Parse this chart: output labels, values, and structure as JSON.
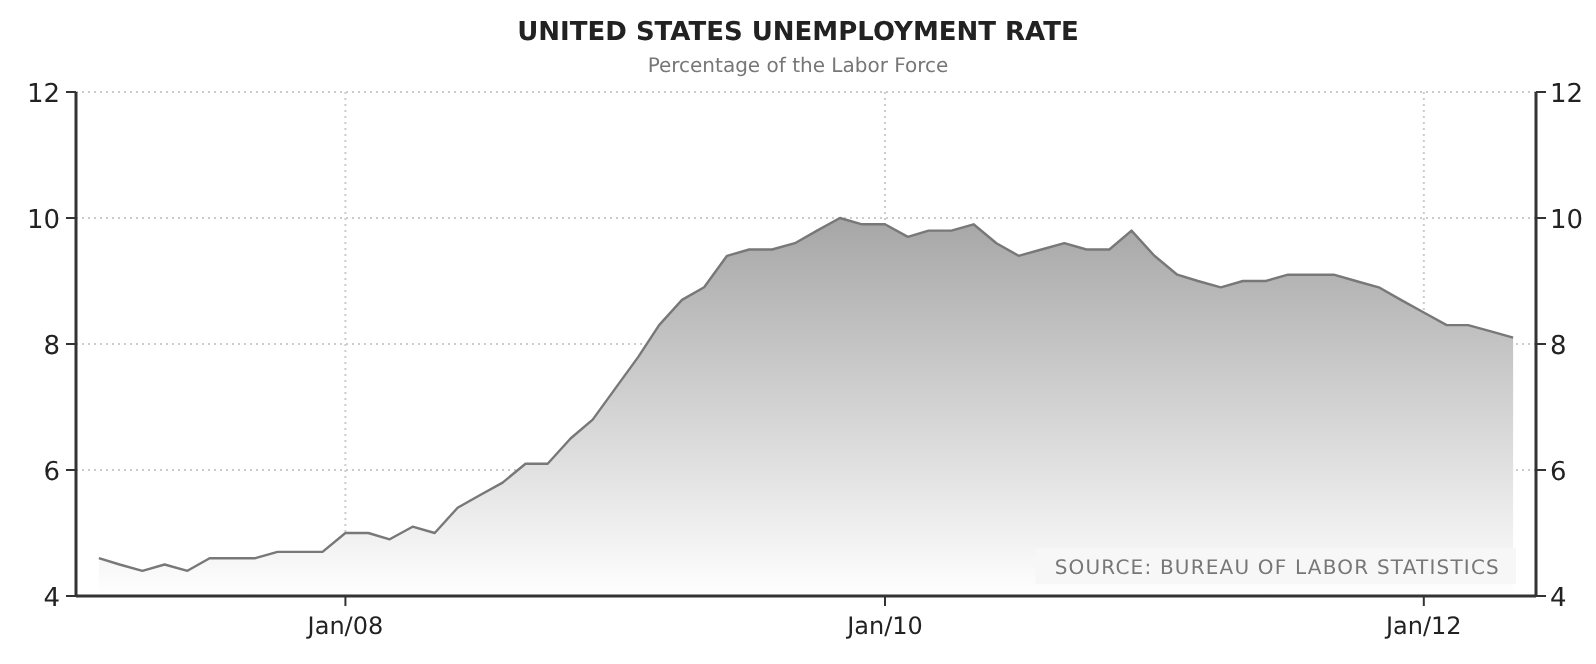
{
  "chart_data": {
    "type": "area",
    "title": "UNITED STATES UNEMPLOYMENT RATE",
    "subtitle": "Percentage of the Labor Force",
    "x": [
      "2007-02",
      "2007-03",
      "2007-04",
      "2007-05",
      "2007-06",
      "2007-07",
      "2007-08",
      "2007-09",
      "2007-10",
      "2007-11",
      "2007-12",
      "2008-01",
      "2008-02",
      "2008-03",
      "2008-04",
      "2008-05",
      "2008-06",
      "2008-07",
      "2008-08",
      "2008-09",
      "2008-10",
      "2008-11",
      "2008-12",
      "2009-01",
      "2009-02",
      "2009-03",
      "2009-04",
      "2009-05",
      "2009-06",
      "2009-07",
      "2009-08",
      "2009-09",
      "2009-10",
      "2009-11",
      "2009-12",
      "2010-01",
      "2010-02",
      "2010-03",
      "2010-04",
      "2010-05",
      "2010-06",
      "2010-07",
      "2010-08",
      "2010-09",
      "2010-10",
      "2010-11",
      "2010-12",
      "2011-01",
      "2011-02",
      "2011-03",
      "2011-04",
      "2011-05",
      "2011-06",
      "2011-07",
      "2011-08",
      "2011-09",
      "2011-10",
      "2011-11",
      "2011-12",
      "2012-01",
      "2012-02",
      "2012-03",
      "2012-04",
      "2012-05"
    ],
    "series": [
      {
        "color": "#a6a6a6",
        "values": [
          4.6,
          4.5,
          4.4,
          4.5,
          4.4,
          4.6,
          4.6,
          4.6,
          4.7,
          4.7,
          4.7,
          5.0,
          5.0,
          4.9,
          5.1,
          5.0,
          5.4,
          5.6,
          5.8,
          6.1,
          6.1,
          6.5,
          6.8,
          7.3,
          7.8,
          8.3,
          8.7,
          8.9,
          9.4,
          9.5,
          9.5,
          9.6,
          9.8,
          10.0,
          9.9,
          9.9,
          9.7,
          9.8,
          9.8,
          9.9,
          9.6,
          9.4,
          9.5,
          9.6,
          9.5,
          9.5,
          9.8,
          9.4,
          9.1,
          9.0,
          8.9,
          9.0,
          9.0,
          9.1,
          9.1,
          9.1,
          9.0,
          8.9,
          8.7,
          8.5,
          8.3,
          8.3,
          8.2,
          8.1
        ]
      }
    ],
    "xlim": [
      "2007-01",
      "2012-06"
    ],
    "xticks": [
      {
        "value": "2008-01",
        "label": "Jan/08"
      },
      {
        "value": "2010-01",
        "label": "Jan/10"
      },
      {
        "value": "2012-01",
        "label": "Jan/12"
      }
    ],
    "ylim": [
      4,
      12
    ],
    "yticks": [
      4,
      6,
      8,
      10,
      12
    ],
    "y2lim": [
      4,
      12
    ],
    "y2ticks": [
      4,
      6,
      8,
      10,
      12
    ],
    "grid": true,
    "annotations": [
      "SOURCE: BUREAU OF LABOR STATISTICS"
    ]
  }
}
